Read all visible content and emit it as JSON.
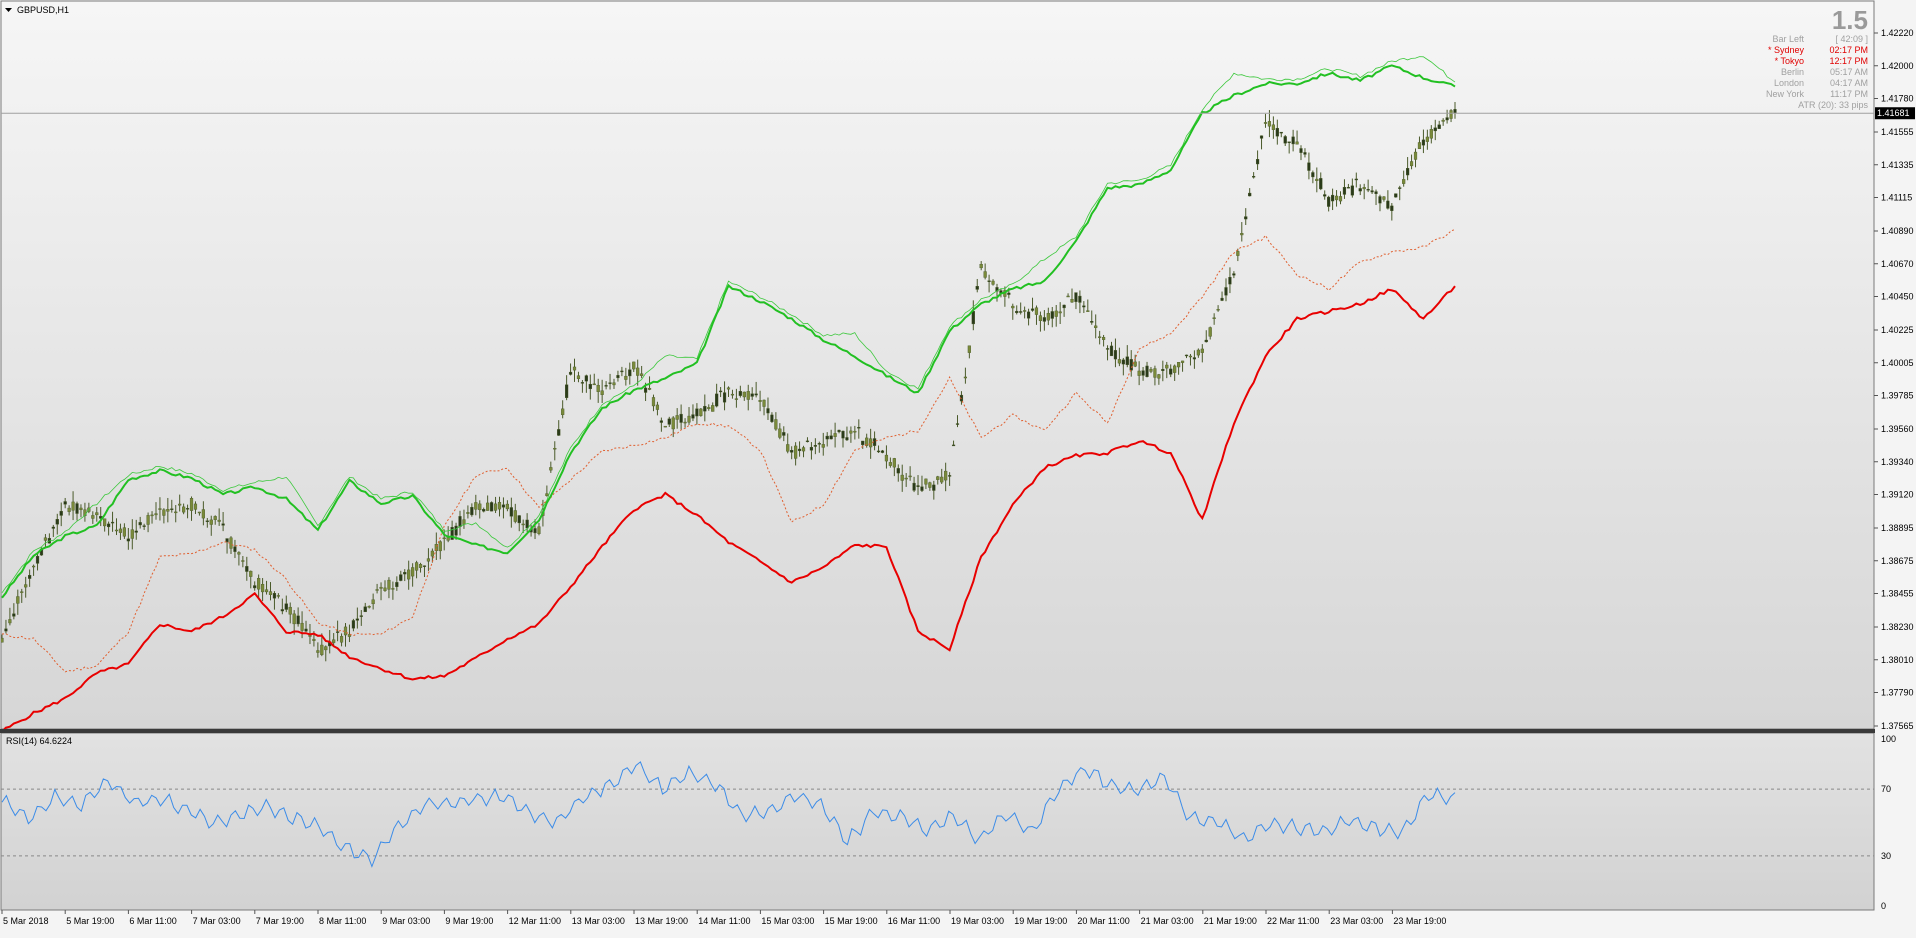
{
  "window": {
    "title": "GBPUSD,H1"
  },
  "info": {
    "big_value": "1.5",
    "rows": [
      {
        "label": "Bar Left",
        "value": "[ 42:09 ]",
        "color": "#a0a0a0"
      },
      {
        "label": "* Sydney",
        "value": "02:17 PM",
        "color": "#e00000"
      },
      {
        "label": "* Tokyo",
        "value": "12:17 PM",
        "color": "#e00000"
      },
      {
        "label": "Berlin",
        "value": "05:17 AM",
        "color": "#a0a0a0"
      },
      {
        "label": "London",
        "value": "04:17 AM",
        "color": "#a0a0a0"
      },
      {
        "label": "New York",
        "value": "11:17 PM",
        "color": "#a0a0a0"
      }
    ],
    "atr": "ATR (20): 33 pips"
  },
  "price_axis": {
    "ticks": [
      "1.42220",
      "1.42000",
      "1.41780",
      "1.41555",
      "1.41335",
      "1.41115",
      "1.40890",
      "1.40670",
      "1.40450",
      "1.40225",
      "1.40005",
      "1.39785",
      "1.39560",
      "1.39340",
      "1.39120",
      "1.38895",
      "1.38675",
      "1.38455",
      "1.38230",
      "1.38010",
      "1.37790",
      "1.37565"
    ],
    "current_price": "1.41681"
  },
  "rsi": {
    "label": "RSI(14) 64.6224",
    "levels": [
      "100",
      "70",
      "30",
      "0"
    ]
  },
  "time_axis": {
    "labels": [
      "5 Mar 2018",
      "5 Mar 19:00",
      "6 Mar 11:00",
      "7 Mar 03:00",
      "7 Mar 19:00",
      "8 Mar 11:00",
      "9 Mar 03:00",
      "9 Mar 19:00",
      "12 Mar 11:00",
      "13 Mar 03:00",
      "13 Mar 19:00",
      "14 Mar 11:00",
      "15 Mar 03:00",
      "15 Mar 19:00",
      "16 Mar 11:00",
      "19 Mar 03:00",
      "19 Mar 19:00",
      "20 Mar 11:00",
      "21 Mar 03:00",
      "21 Mar 19:00",
      "22 Mar 11:00",
      "23 Mar 03:00",
      "23 Mar 19:00"
    ]
  },
  "colors": {
    "background_top": "#f6f6f6",
    "background_bottom": "#d2d2d2",
    "upper_band": "#22c022",
    "upper_thin": "#3cc83c",
    "lower_band": "#e80000",
    "lower_dotted": "#e06030",
    "candle": "#4a5a2a",
    "rsi_line": "#3c8ce8"
  },
  "chart_data": [
    {
      "type": "line",
      "title": "GBPUSD,H1",
      "ylim": [
        1.37565,
        1.4222
      ],
      "series": [
        {
          "values": [
            1.3843,
            1.3871,
            1.3884,
            1.3891,
            1.3922,
            1.3928,
            1.3923,
            1.3912,
            1.3917,
            1.3909,
            1.3888,
            1.3921,
            1.3906,
            1.3911,
            1.3885,
            1.3878,
            1.3873,
            1.3895,
            1.394,
            1.397,
            1.3982,
            1.399,
            1.4,
            1.4052,
            1.4042,
            1.403,
            1.4016,
            1.4005,
            1.3992,
            1.398,
            1.4022,
            1.404,
            1.405,
            1.4055,
            1.4082,
            1.4118,
            1.412,
            1.413,
            1.4168,
            1.418,
            1.4188,
            1.4188,
            1.4195,
            1.419,
            1.42,
            1.4192,
            1.4186
          ]
        },
        {
          "values": [
            1.3753,
            1.3765,
            1.3775,
            1.3792,
            1.3798,
            1.3825,
            1.382,
            1.383,
            1.3845,
            1.382,
            1.3818,
            1.3803,
            1.3795,
            1.3788,
            1.379,
            1.3802,
            1.3815,
            1.3825,
            1.385,
            1.3877,
            1.3902,
            1.3912,
            1.3898,
            1.388,
            1.3867,
            1.3853,
            1.3863,
            1.3878,
            1.3877,
            1.382,
            1.3808,
            1.387,
            1.3905,
            1.393,
            1.3938,
            1.394,
            1.3948,
            1.394,
            1.3895,
            1.396,
            1.4005,
            1.403,
            1.4035,
            1.404,
            1.405,
            1.403,
            1.4052
          ]
        },
        {
          "values": [
            1.3818,
            1.3815,
            1.3793,
            1.3797,
            1.382,
            1.387,
            1.3872,
            1.388,
            1.3875,
            1.3855,
            1.3826,
            1.3818,
            1.3818,
            1.383,
            1.389,
            1.3925,
            1.393,
            1.3903,
            1.3922,
            1.3941,
            1.3945,
            1.395,
            1.396,
            1.3958,
            1.3942,
            1.3893,
            1.3905,
            1.3942,
            1.395,
            1.3955,
            1.399,
            1.395,
            1.3965,
            1.3955,
            1.398,
            1.396,
            1.401,
            1.402,
            1.4045,
            1.4075,
            1.4085,
            1.406,
            1.405,
            1.4068,
            1.4075,
            1.4078,
            1.409
          ]
        },
        {
          "values": [
            1.3815,
            1.3862,
            1.3905,
            1.3898,
            1.3885,
            1.3902,
            1.3905,
            1.3888,
            1.3853,
            1.3836,
            1.3808,
            1.382,
            1.3848,
            1.386,
            1.388,
            1.3905,
            1.3903,
            1.3887,
            1.3995,
            1.398,
            1.3998,
            1.396,
            1.3965,
            1.398,
            1.3978,
            1.394,
            1.3948,
            1.3955,
            1.3938,
            1.3915,
            1.3925,
            1.4065,
            1.404,
            1.403,
            1.4045,
            1.401,
            1.3995,
            1.3995,
            1.401,
            1.406,
            1.4162,
            1.4148,
            1.411,
            1.412,
            1.4105,
            1.415,
            1.4168
          ]
        }
      ]
    },
    {
      "type": "line",
      "title": "RSI(14) 64.6224",
      "ylim": [
        0,
        100
      ],
      "series": [
        {
          "values": [
            63,
            52,
            65,
            60,
            75,
            62,
            64,
            58,
            49,
            55,
            59,
            53,
            47,
            35,
            28,
            48,
            60,
            62,
            64,
            66,
            55,
            50,
            65,
            72,
            85,
            70,
            80,
            73,
            55,
            57,
            66,
            61,
            39,
            56,
            54,
            45,
            54,
            40,
            55,
            44,
            70,
            82,
            72,
            69,
            77,
            52,
            51,
            40,
            49,
            47,
            44,
            52,
            47,
            44,
            67,
            64
          ]
        }
      ]
    }
  ]
}
